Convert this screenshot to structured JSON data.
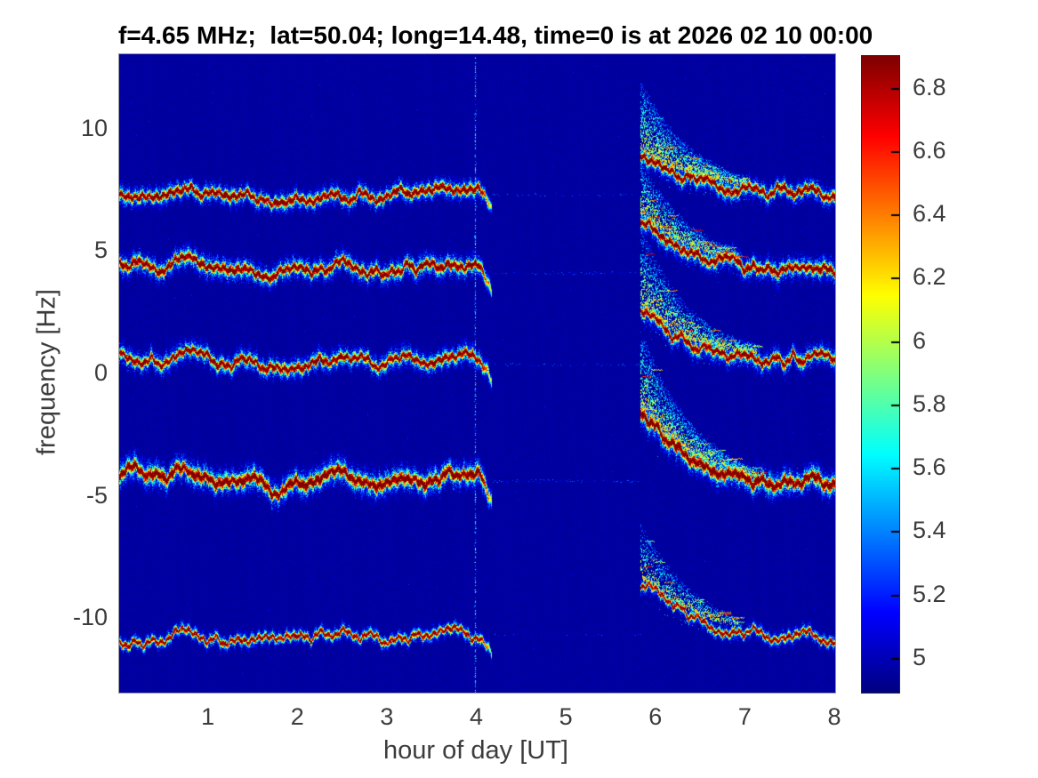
{
  "title": "f=4.65 MHz;  lat=50.04; long=14.48, time=0 is at 2026 02 10 00:00",
  "colors": {
    "figure_background": "#ffffff",
    "plot_background": "#0000a1",
    "text": "#3c3c3c",
    "title_text": "#000000"
  },
  "chart_data": {
    "type": "heatmap",
    "subtype": "doppler-spectrogram",
    "title": "f=4.65 MHz;  lat=50.04; long=14.48, time=0 is at 2026 02 10 00:00",
    "xlabel": "hour of day [UT]",
    "ylabel": "frequency [Hz]",
    "x_range": [
      0,
      8
    ],
    "y_range": [
      -13.05,
      13.05
    ],
    "grid": false,
    "x_ticks": {
      "values": [
        1,
        2,
        3,
        4,
        5,
        6,
        7,
        8
      ],
      "labels": [
        "1",
        "2",
        "3",
        "4",
        "5",
        "6",
        "7",
        "8"
      ]
    },
    "y_ticks": {
      "values": [
        10,
        5,
        0,
        -5,
        -10
      ],
      "labels": [
        "10",
        "5",
        "0",
        "-5",
        "-10"
      ]
    },
    "colorbar": {
      "colormap": "jet",
      "range": [
        4.89,
        6.9
      ],
      "tick_values": [
        5,
        5.2,
        5.4,
        5.6,
        5.8,
        6,
        6.2,
        6.4,
        6.6,
        6.8
      ],
      "tick_labels": [
        "5",
        "5.2",
        "5.4",
        "5.6",
        "5.8",
        "6",
        "6.2",
        "6.4",
        "6.6",
        "6.8"
      ],
      "position": "right"
    },
    "background_value": 4.95,
    "annotations": {
      "vertical_artifact_line_hour": 3.98,
      "data_gap_hours": [
        4.15,
        5.82
      ]
    },
    "traces": [
      {
        "name": "doppler-trace-+7Hz",
        "mean_f": 7.3,
        "core_sigma": 3.0,
        "skirt_sigma": 7.5,
        "amp": 0.97,
        "gap_f": 7.3,
        "gap_density": 0.3,
        "left": {
          "x0": 0,
          "x1": 4.15,
          "f": [
            7.2,
            7.3,
            7.15,
            7.6,
            7.4,
            7.2,
            7.3,
            7.05,
            7.2,
            7.15,
            7.3,
            7.25,
            7.2,
            7.4,
            7.3,
            7.5,
            7.55,
            7.4
          ]
        },
        "right": {
          "x0": 5.82,
          "x1": 8.0,
          "f": [
            8.9,
            8.35,
            7.95,
            7.7,
            7.5,
            7.4,
            7.35,
            7.35,
            7.3
          ],
          "plume_height": 2.8,
          "plume_density": 1.0
        }
      },
      {
        "name": "doppler-trace-+4Hz",
        "mean_f": 4.3,
        "core_sigma": 3.2,
        "skirt_sigma": 8.5,
        "amp": 0.97,
        "gap_f": 4.1,
        "gap_density": 0.45,
        "left": {
          "x0": 0,
          "x1": 4.15,
          "f": [
            4.6,
            4.45,
            4.25,
            4.6,
            4.35,
            4.15,
            4.3,
            3.9,
            4.15,
            4.3,
            4.45,
            4.3,
            4.2,
            4.4,
            4.3,
            4.55,
            4.5,
            4.4
          ]
        },
        "right": {
          "x0": 5.82,
          "x1": 8.0,
          "f": [
            6.3,
            5.55,
            5.0,
            4.65,
            4.45,
            4.3,
            4.25,
            4.35,
            4.2
          ],
          "plume_height": 2.2,
          "plume_density": 0.7
        }
      },
      {
        "name": "doppler-trace-0Hz",
        "mean_f": 0.5,
        "core_sigma": 3.0,
        "skirt_sigma": 8.0,
        "amp": 0.95,
        "gap_f": 0.35,
        "gap_density": 0.35,
        "left": {
          "x0": 0,
          "x1": 4.15,
          "f": [
            0.75,
            0.6,
            0.45,
            0.9,
            0.65,
            0.35,
            0.55,
            0.15,
            0.4,
            0.5,
            0.7,
            0.5,
            0.35,
            0.6,
            0.5,
            0.8,
            0.7,
            0.55
          ]
        },
        "right": {
          "x0": 5.82,
          "x1": 8.0,
          "f": [
            2.6,
            1.75,
            1.2,
            0.9,
            0.7,
            0.6,
            0.55,
            0.65,
            0.5
          ],
          "plume_height": 3.2,
          "plume_density": 0.9
        }
      },
      {
        "name": "doppler-trace--4Hz",
        "mean_f": -4.3,
        "core_sigma": 4.0,
        "skirt_sigma": 10.0,
        "amp": 1.0,
        "gap_f": -4.4,
        "gap_density": 0.5,
        "left": {
          "x0": 0,
          "x1": 4.15,
          "f": [
            -4.1,
            -3.95,
            -4.3,
            -3.85,
            -4.3,
            -4.6,
            -4.35,
            -4.8,
            -4.55,
            -4.3,
            -4.1,
            -4.35,
            -4.5,
            -4.2,
            -4.4,
            -4.0,
            -4.15,
            -4.3
          ]
        },
        "right": {
          "x0": 5.82,
          "x1": 8.0,
          "f": [
            -1.6,
            -2.7,
            -3.4,
            -3.9,
            -4.3,
            -4.5,
            -4.55,
            -4.4,
            -4.45
          ],
          "plume_height": 3.2,
          "plume_density": 1.0
        }
      },
      {
        "name": "doppler-trace--10Hz",
        "mean_f": -10.7,
        "core_sigma": 2.3,
        "skirt_sigma": 5.5,
        "amp": 0.9,
        "gap_f": -10.7,
        "gap_density": 0.2,
        "left": {
          "x0": 0,
          "x1": 4.15,
          "f": [
            -10.9,
            -11.15,
            -10.85,
            -10.6,
            -10.95,
            -11.05,
            -10.8,
            -10.65,
            -10.9,
            -10.75,
            -10.6,
            -10.8,
            -10.9,
            -10.7,
            -10.75,
            -10.55,
            -10.65,
            -10.8
          ]
        },
        "right": {
          "x0": 5.82,
          "x1": 8.0,
          "f": [
            -8.6,
            -9.3,
            -9.9,
            -10.3,
            -10.55,
            -10.7,
            -10.8,
            -10.7,
            -10.85
          ],
          "plume_height": 2.2,
          "plume_density": 0.45
        }
      }
    ]
  }
}
